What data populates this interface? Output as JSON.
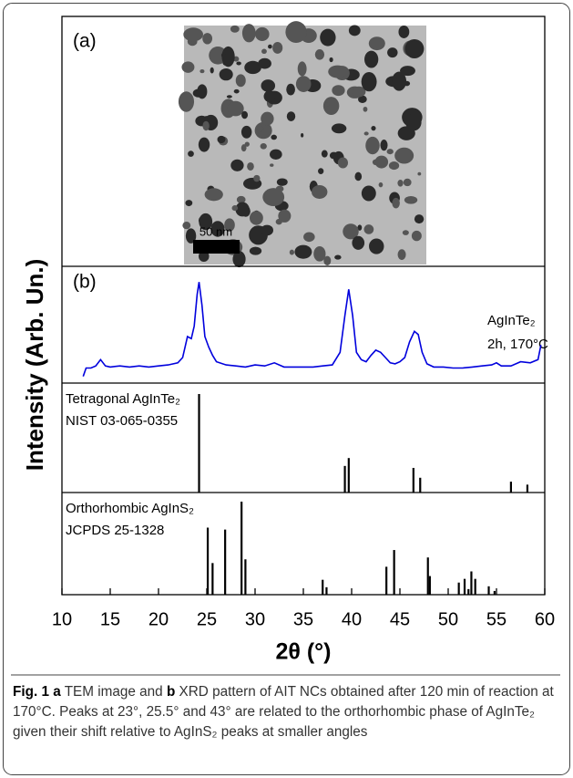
{
  "figure": {
    "panel_a": {
      "label": "(a)",
      "scale_bar": "50 nm"
    },
    "ylabel": "Intensity (Arb. Un.)"
  },
  "chart_data": [
    {
      "type": "line",
      "label": "(b)",
      "annotations": [
        "AgInTe₂",
        "2h, 170°C"
      ],
      "color": "#0000dd",
      "xlim": [
        10,
        60
      ],
      "ylim": [
        0,
        100
      ],
      "x": [
        12.2,
        12.5,
        13,
        13.5,
        14,
        14.5,
        15,
        16,
        17,
        18,
        19,
        20,
        21,
        22,
        22.5,
        23,
        23.4,
        23.7,
        24,
        24.2,
        24.5,
        24.8,
        25.2,
        25.6,
        26,
        27,
        28,
        29,
        30,
        31,
        32,
        33,
        34,
        35,
        36,
        37,
        38,
        38.8,
        39.3,
        39.7,
        40.1,
        40.5,
        41,
        41.5,
        42,
        42.5,
        43,
        43.5,
        44,
        44.5,
        45,
        45.5,
        46,
        46.5,
        46.9,
        47.3,
        47.8,
        48.5,
        49.5,
        50.5,
        51.5,
        52.5,
        53.5,
        54.5,
        55,
        55.5,
        56.5,
        57.5,
        58.5,
        59.3,
        59.6
      ],
      "values": [
        2,
        10,
        10,
        12,
        18,
        12,
        11,
        12,
        11,
        12,
        11,
        12,
        13,
        15,
        20,
        40,
        38,
        50,
        80,
        92,
        70,
        40,
        30,
        22,
        16,
        13,
        12,
        11,
        13,
        12,
        15,
        11,
        11,
        11,
        11,
        12,
        13,
        25,
        60,
        85,
        60,
        25,
        18,
        16,
        22,
        27,
        25,
        20,
        15,
        14,
        16,
        20,
        35,
        45,
        42,
        25,
        14,
        11,
        11,
        10,
        10,
        11,
        12,
        13,
        15,
        12,
        12,
        16,
        15,
        18,
        32
      ]
    },
    {
      "type": "stem",
      "annotations": [
        "Tetragonal AgInTe₂",
        "NIST 03-065-0355"
      ],
      "color": "#000000",
      "xlim": [
        10,
        60
      ],
      "ylim": [
        0,
        100
      ],
      "x": [
        24.2,
        39.3,
        39.7,
        46.4,
        47.1,
        56.5,
        58.2
      ],
      "values": [
        100,
        27,
        35,
        25,
        15,
        11,
        8
      ]
    },
    {
      "type": "stem",
      "annotations": [
        "Orthorhombic AgInS₂",
        "JCPDS 25-1328"
      ],
      "color": "#000000",
      "xlim": [
        10,
        60
      ],
      "ylim": [
        0,
        100
      ],
      "x": [
        25.1,
        25.6,
        26.9,
        28.6,
        29.0,
        37.0,
        37.4,
        43.6,
        44.4,
        47.9,
        48.1,
        51.1,
        51.7,
        52.1,
        52.4,
        52.8,
        54.2,
        54.8
      ],
      "values": [
        72,
        34,
        70,
        100,
        38,
        16,
        8,
        30,
        48,
        40,
        20,
        13,
        17,
        6,
        25,
        17,
        9,
        4
      ],
      "xlabel": "2θ (°)",
      "xticks": [
        10,
        15,
        20,
        25,
        30,
        35,
        40,
        45,
        50,
        55,
        60
      ]
    }
  ],
  "caption": {
    "label": "Fig. 1",
    "a": "a",
    "text_a": "TEM image and",
    "b": "b",
    "text_b": "XRD pattern of AIT NCs obtained after 120 min of reaction at 170°C. Peaks at 23°, 25.5° and 43° are related to the orthorhombic phase of AgInTe₂ given their shift relative to AgInS₂ peaks at smaller angles"
  }
}
